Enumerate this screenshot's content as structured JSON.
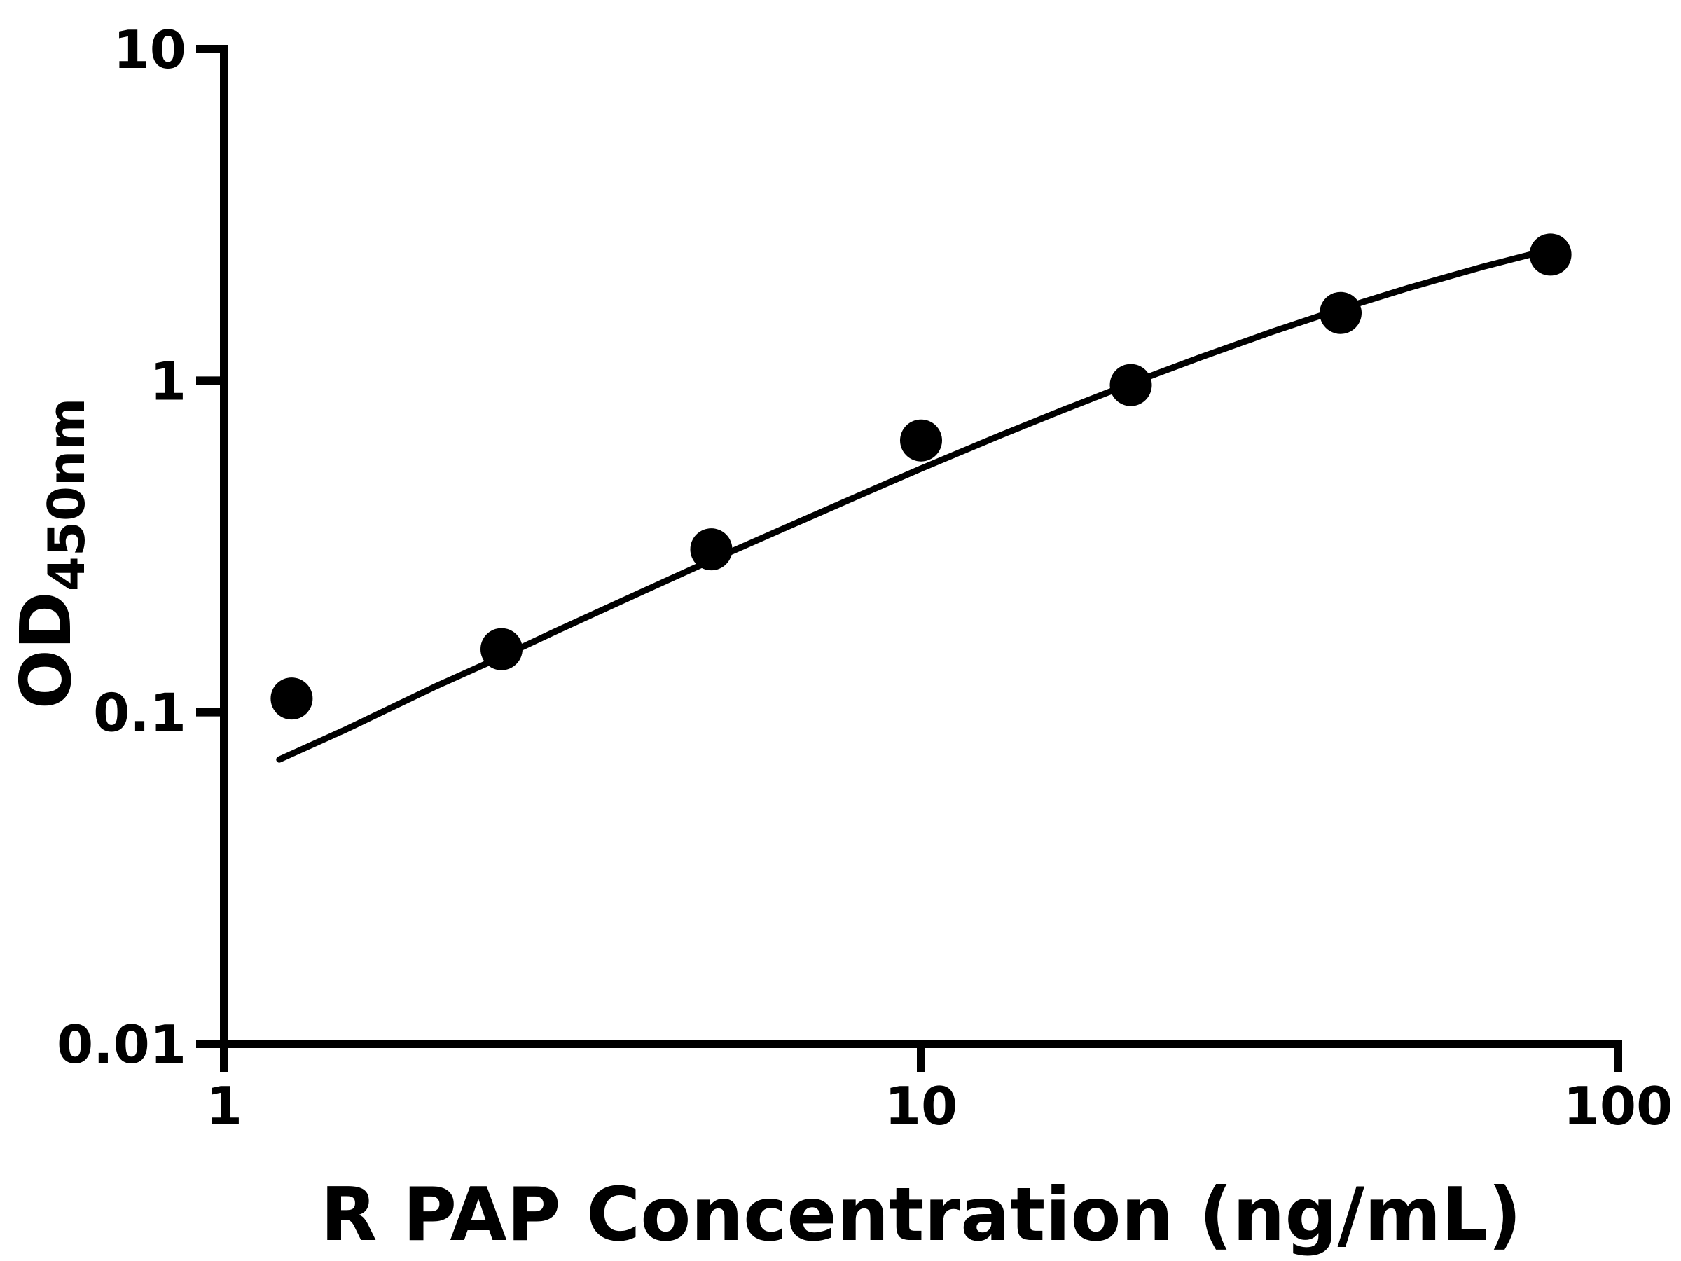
{
  "chart_data": {
    "type": "scatter",
    "title": "",
    "xlabel": "R PAP Concentration (ng/mL)",
    "ylabel": "OD",
    "ylabel_subscript": "450nm",
    "x_scale": "log",
    "y_scale": "log",
    "xlim": [
      1,
      100
    ],
    "ylim": [
      0.01,
      10
    ],
    "grid": false,
    "legend": "none",
    "x_ticks": [
      {
        "value": 1,
        "label": "1"
      },
      {
        "value": 10,
        "label": "10"
      },
      {
        "value": 100,
        "label": "100"
      }
    ],
    "y_ticks": [
      {
        "value": 10,
        "label": "10"
      },
      {
        "value": 1,
        "label": "1"
      },
      {
        "value": 0.1,
        "label": "0.1"
      },
      {
        "value": 0.01,
        "label": "0.01"
      }
    ],
    "series": [
      {
        "name": "standard-curve-points",
        "marker": "circle",
        "marker_color": "#000000",
        "points": [
          {
            "x": 1.25,
            "y": 0.11
          },
          {
            "x": 2.5,
            "y": 0.155
          },
          {
            "x": 5,
            "y": 0.31
          },
          {
            "x": 10,
            "y": 0.66
          },
          {
            "x": 20,
            "y": 0.97
          },
          {
            "x": 40,
            "y": 1.6
          },
          {
            "x": 80,
            "y": 2.4
          }
        ]
      }
    ],
    "fit_curve": {
      "name": "fitted-curve",
      "color": "#000000",
      "points": [
        [
          1.2,
          0.072
        ],
        [
          1.5,
          0.089
        ],
        [
          2,
          0.119
        ],
        [
          2.5,
          0.147
        ],
        [
          3,
          0.176
        ],
        [
          4,
          0.232
        ],
        [
          5,
          0.287
        ],
        [
          6.5,
          0.366
        ],
        [
          8,
          0.443
        ],
        [
          10,
          0.543
        ],
        [
          13,
          0.684
        ],
        [
          16,
          0.816
        ],
        [
          20,
          0.981
        ],
        [
          25,
          1.17
        ],
        [
          32,
          1.407
        ],
        [
          40,
          1.645
        ],
        [
          50,
          1.903
        ],
        [
          64,
          2.205
        ],
        [
          80,
          2.488
        ]
      ]
    },
    "colors": {
      "axis": "#000000",
      "background": "#ffffff",
      "marker": "#000000",
      "curve": "#000000"
    }
  }
}
